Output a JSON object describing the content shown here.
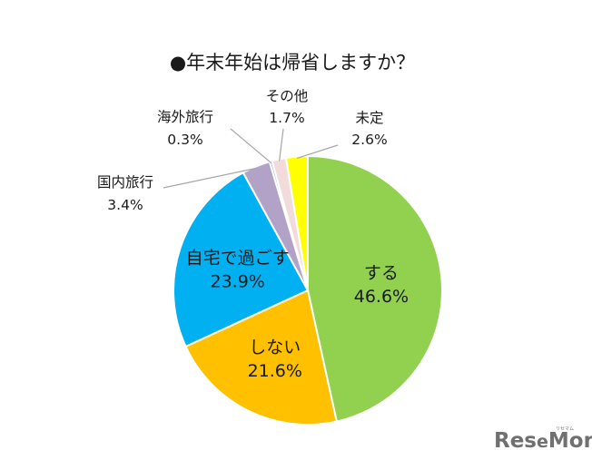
{
  "chart_data": {
    "type": "pie",
    "title": "●年末年始は帰省しますか？",
    "slices": [
      {
        "label": "する",
        "value": 46.6,
        "value_label": "46.6%",
        "color": "#92d050",
        "label_position": "inside"
      },
      {
        "label": "しない",
        "value": 21.6,
        "value_label": "21.6%",
        "color": "#ffc000",
        "label_position": "inside"
      },
      {
        "label": "自宅で過ごす",
        "value": 23.9,
        "value_label": "23.9%",
        "color": "#00b0f0",
        "label_position": "inside"
      },
      {
        "label": "国内旅行",
        "value": 3.4,
        "value_label": "3.4%",
        "color": "#b3a2c7",
        "label_position": "outside"
      },
      {
        "label": "海外旅行",
        "value": 0.3,
        "value_label": "0.3%",
        "color": "#8eb4e3",
        "label_position": "outside"
      },
      {
        "label": "その他",
        "value": 1.7,
        "value_label": "1.7%",
        "color": "#f2dcdb",
        "label_position": "outside"
      },
      {
        "label": "未定",
        "value": 2.6,
        "value_label": "2.6%",
        "color": "#ffff00",
        "label_position": "outside"
      }
    ],
    "start_angle_deg": 0,
    "direction": "clockwise",
    "legend": "none"
  },
  "logo": {
    "text_a": "Res",
    "text_e": "e",
    "text_b": "Mom",
    "small": "リセマム",
    "color": "#707070"
  }
}
